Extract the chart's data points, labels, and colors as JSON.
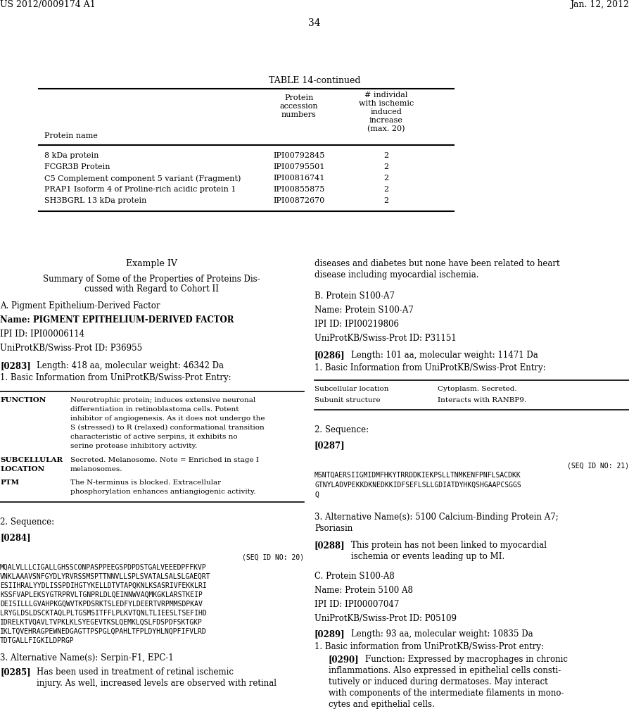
{
  "background_color": "#ffffff",
  "header_left": "US 2012/0009174 A1",
  "header_right": "Jan. 12, 2012",
  "page_number": "34",
  "table_title": "TABLE 14-continued",
  "table_rows": [
    [
      "8 kDa protein",
      "IPI00792845",
      "2"
    ],
    [
      "FCGR3B Protein",
      "IPI00795501",
      "2"
    ],
    [
      "C5 Complement component 5 variant (Fragment)",
      "IPI00816741",
      "2"
    ],
    [
      "PRAP1 Isoform 4 of Proline-rich acidic protein 1",
      "IPI00855875",
      "2"
    ],
    [
      "SH3BGRL 13 kDa protein",
      "IPI00872670",
      "2"
    ]
  ]
}
